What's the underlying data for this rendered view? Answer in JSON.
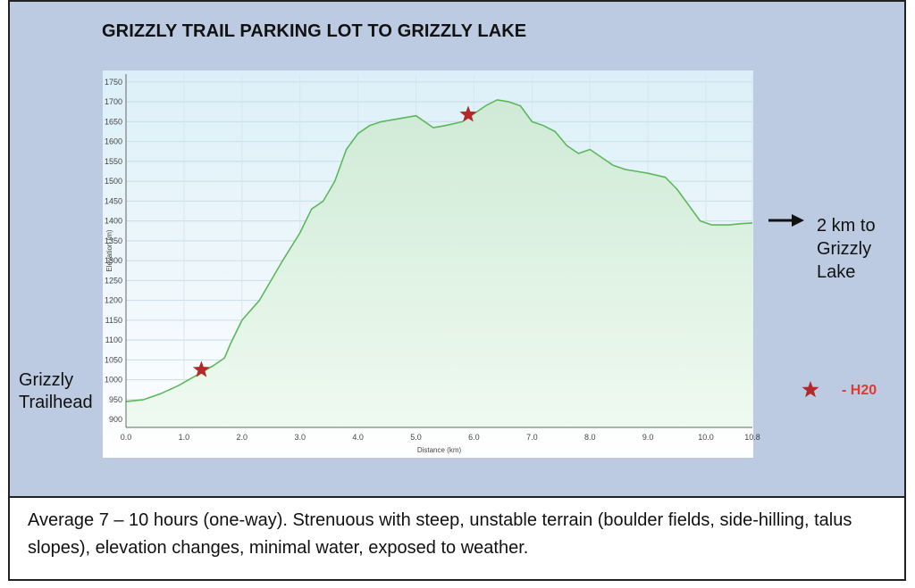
{
  "title": "GRIZZLY TRAIL PARKING LOT TO GRIZZLY LAKE",
  "trailhead_label": "Grizzly Trailhead",
  "destination_label": "2 km to Grizzly Lake",
  "legend": {
    "icon": "star-icon",
    "label": "- H20",
    "star_color": "#b5282a"
  },
  "description": "Average 7 – 10 hours (one-way). Strenuous with steep, unstable terrain (boulder fields, side-hilling, talus slopes), elevation changes, minimal water, exposed to weather.",
  "chart_data": {
    "type": "area",
    "title": "",
    "xlabel": "Distance   (km)",
    "ylabel": "Elevation  (m)",
    "xlim": [
      0,
      10.8
    ],
    "ylim": [
      880,
      1770
    ],
    "x_ticks": [
      "0.0",
      "1.0",
      "2.0",
      "3.0",
      "4.0",
      "5.0",
      "6.0",
      "7.0",
      "8.0",
      "9.0",
      "10.0",
      "10.8"
    ],
    "y_ticks": [
      "900",
      "950",
      "1000",
      "1050",
      "1100",
      "1150",
      "1200",
      "1250",
      "1300",
      "1350",
      "1400",
      "1450",
      "1500",
      "1550",
      "1600",
      "1650",
      "1700",
      "1750"
    ],
    "grid": true,
    "line_color": "#5cb85c",
    "series": [
      {
        "x": [
          0,
          0.3,
          0.6,
          0.9,
          1.2,
          1.5,
          1.6,
          1.7,
          1.8,
          2.0,
          2.3,
          2.5,
          2.7,
          3.0,
          3.2,
          3.4,
          3.6,
          3.8,
          4.0,
          4.2,
          4.4,
          4.6,
          4.8,
          5.0,
          5.3,
          5.5,
          5.8,
          6.0,
          6.2,
          6.4,
          6.6,
          6.8,
          7.0,
          7.2,
          7.4,
          7.6,
          7.8,
          8.0,
          8.2,
          8.4,
          8.6,
          8.8,
          9.0,
          9.3,
          9.5,
          9.7,
          9.9,
          10.1,
          10.4,
          10.6,
          10.8
        ],
        "y": [
          945,
          950,
          965,
          985,
          1010,
          1035,
          1045,
          1055,
          1090,
          1150,
          1200,
          1250,
          1300,
          1370,
          1430,
          1450,
          1500,
          1580,
          1620,
          1640,
          1650,
          1655,
          1660,
          1665,
          1635,
          1640,
          1650,
          1670,
          1690,
          1705,
          1700,
          1690,
          1650,
          1640,
          1625,
          1590,
          1570,
          1580,
          1560,
          1540,
          1530,
          1525,
          1520,
          1510,
          1480,
          1440,
          1400,
          1390,
          1390,
          1393,
          1395
        ]
      }
    ],
    "markers": [
      {
        "x": 1.3,
        "y": 1025
      },
      {
        "x": 5.9,
        "y": 1668
      }
    ]
  }
}
